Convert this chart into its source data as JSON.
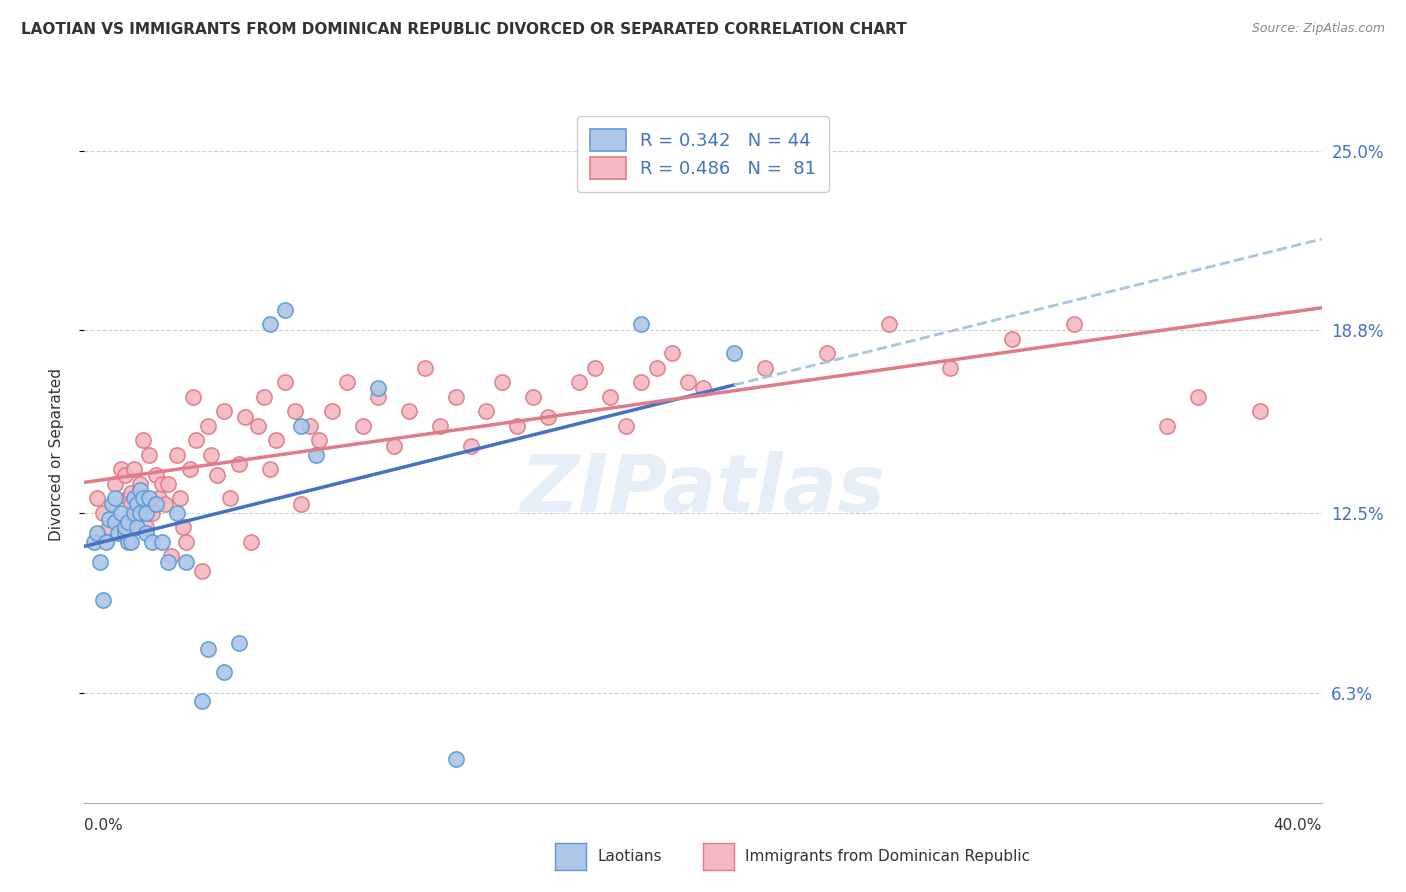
{
  "title": "LAOTIAN VS IMMIGRANTS FROM DOMINICAN REPUBLIC DIVORCED OR SEPARATED CORRELATION CHART",
  "source": "Source: ZipAtlas.com",
  "ylabel": "Divorced or Separated",
  "ytick_labels": [
    "6.3%",
    "12.5%",
    "18.8%",
    "25.0%"
  ],
  "ytick_values": [
    0.063,
    0.125,
    0.188,
    0.25
  ],
  "xlim": [
    0.0,
    0.4
  ],
  "ylim": [
    0.025,
    0.265
  ],
  "color_laotian_fill": "#aec6e8",
  "color_laotian_edge": "#5b9bd5",
  "color_dominican_fill": "#f4b8c1",
  "color_dominican_edge": "#e07b8a",
  "color_laotian_line": "#4472c4",
  "color_dominican_line": "#e07b8a",
  "color_laotian_dash": "#a8c4e0",
  "background_color": "#ffffff",
  "grid_color": "#cccccc",
  "laotian_x": [
    0.003,
    0.004,
    0.005,
    0.006,
    0.007,
    0.008,
    0.009,
    0.01,
    0.01,
    0.011,
    0.012,
    0.013,
    0.013,
    0.014,
    0.014,
    0.015,
    0.016,
    0.016,
    0.017,
    0.017,
    0.018,
    0.018,
    0.019,
    0.02,
    0.02,
    0.021,
    0.022,
    0.023,
    0.025,
    0.027,
    0.03,
    0.033,
    0.038,
    0.04,
    0.045,
    0.05,
    0.06,
    0.065,
    0.07,
    0.075,
    0.095,
    0.12,
    0.18,
    0.21
  ],
  "laotian_y": [
    0.115,
    0.118,
    0.108,
    0.095,
    0.115,
    0.123,
    0.128,
    0.122,
    0.13,
    0.118,
    0.125,
    0.118,
    0.12,
    0.122,
    0.115,
    0.115,
    0.125,
    0.13,
    0.12,
    0.128,
    0.125,
    0.133,
    0.13,
    0.125,
    0.118,
    0.13,
    0.115,
    0.128,
    0.115,
    0.108,
    0.125,
    0.108,
    0.06,
    0.078,
    0.07,
    0.08,
    0.19,
    0.195,
    0.155,
    0.145,
    0.168,
    0.04,
    0.19,
    0.18
  ],
  "dominican_x": [
    0.004,
    0.006,
    0.008,
    0.01,
    0.012,
    0.013,
    0.014,
    0.015,
    0.015,
    0.016,
    0.017,
    0.018,
    0.019,
    0.02,
    0.021,
    0.022,
    0.023,
    0.024,
    0.025,
    0.026,
    0.027,
    0.028,
    0.03,
    0.031,
    0.032,
    0.033,
    0.034,
    0.035,
    0.036,
    0.038,
    0.04,
    0.041,
    0.043,
    0.045,
    0.047,
    0.05,
    0.052,
    0.054,
    0.056,
    0.058,
    0.06,
    0.062,
    0.065,
    0.068,
    0.07,
    0.073,
    0.076,
    0.08,
    0.085,
    0.09,
    0.095,
    0.1,
    0.105,
    0.11,
    0.115,
    0.12,
    0.125,
    0.13,
    0.135,
    0.14,
    0.145,
    0.15,
    0.16,
    0.165,
    0.17,
    0.175,
    0.18,
    0.185,
    0.19,
    0.195,
    0.2,
    0.22,
    0.24,
    0.26,
    0.28,
    0.3,
    0.32,
    0.35,
    0.36,
    0.38
  ],
  "dominican_y": [
    0.13,
    0.125,
    0.12,
    0.135,
    0.14,
    0.138,
    0.13,
    0.128,
    0.132,
    0.14,
    0.13,
    0.135,
    0.15,
    0.12,
    0.145,
    0.125,
    0.138,
    0.13,
    0.135,
    0.128,
    0.135,
    0.11,
    0.145,
    0.13,
    0.12,
    0.115,
    0.14,
    0.165,
    0.15,
    0.105,
    0.155,
    0.145,
    0.138,
    0.16,
    0.13,
    0.142,
    0.158,
    0.115,
    0.155,
    0.165,
    0.14,
    0.15,
    0.17,
    0.16,
    0.128,
    0.155,
    0.15,
    0.16,
    0.17,
    0.155,
    0.165,
    0.148,
    0.16,
    0.175,
    0.155,
    0.165,
    0.148,
    0.16,
    0.17,
    0.155,
    0.165,
    0.158,
    0.17,
    0.175,
    0.165,
    0.155,
    0.17,
    0.175,
    0.18,
    0.17,
    0.168,
    0.175,
    0.18,
    0.19,
    0.175,
    0.185,
    0.19,
    0.155,
    0.165,
    0.16
  ]
}
